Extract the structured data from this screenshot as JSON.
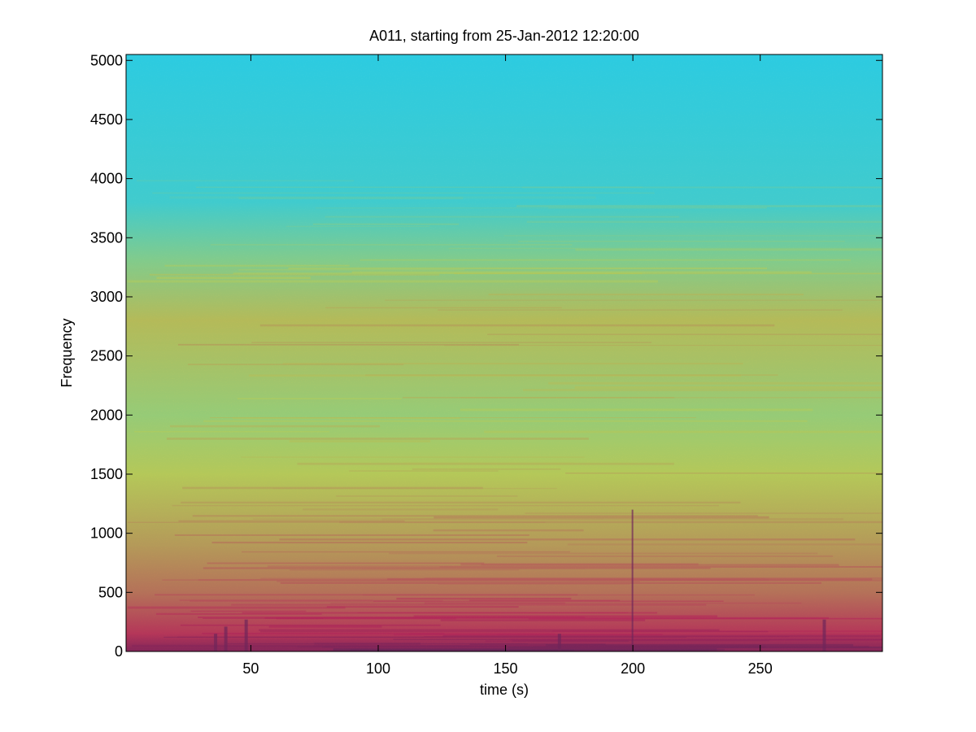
{
  "chart_data": {
    "type": "heatmap",
    "title": "A011, starting from 25-Jan-2012 12:20:00",
    "xlabel": "time (s)",
    "ylabel": "Frequency",
    "xlim": [
      1,
      298
    ],
    "ylim": [
      0,
      5050
    ],
    "x_ticks": [
      50,
      100,
      150,
      200,
      250
    ],
    "y_ticks": [
      0,
      500,
      1000,
      1500,
      2000,
      2500,
      3000,
      3500,
      4000,
      4500,
      5000
    ],
    "grid": false,
    "colormap": "jet",
    "intensity_profile": [
      {
        "frequency": 0,
        "level": 0.95
      },
      {
        "frequency": 150,
        "level": 0.85
      },
      {
        "frequency": 500,
        "level": 0.76
      },
      {
        "frequency": 900,
        "level": 0.7
      },
      {
        "frequency": 1500,
        "level": 0.63
      },
      {
        "frequency": 2000,
        "level": 0.58
      },
      {
        "frequency": 2800,
        "level": 0.65
      },
      {
        "frequency": 3300,
        "level": 0.55
      },
      {
        "frequency": 3800,
        "level": 0.45
      },
      {
        "frequency": 5050,
        "level": 0.42
      }
    ],
    "broadband_events_s": [
      36,
      40,
      48,
      171,
      200,
      275
    ]
  }
}
